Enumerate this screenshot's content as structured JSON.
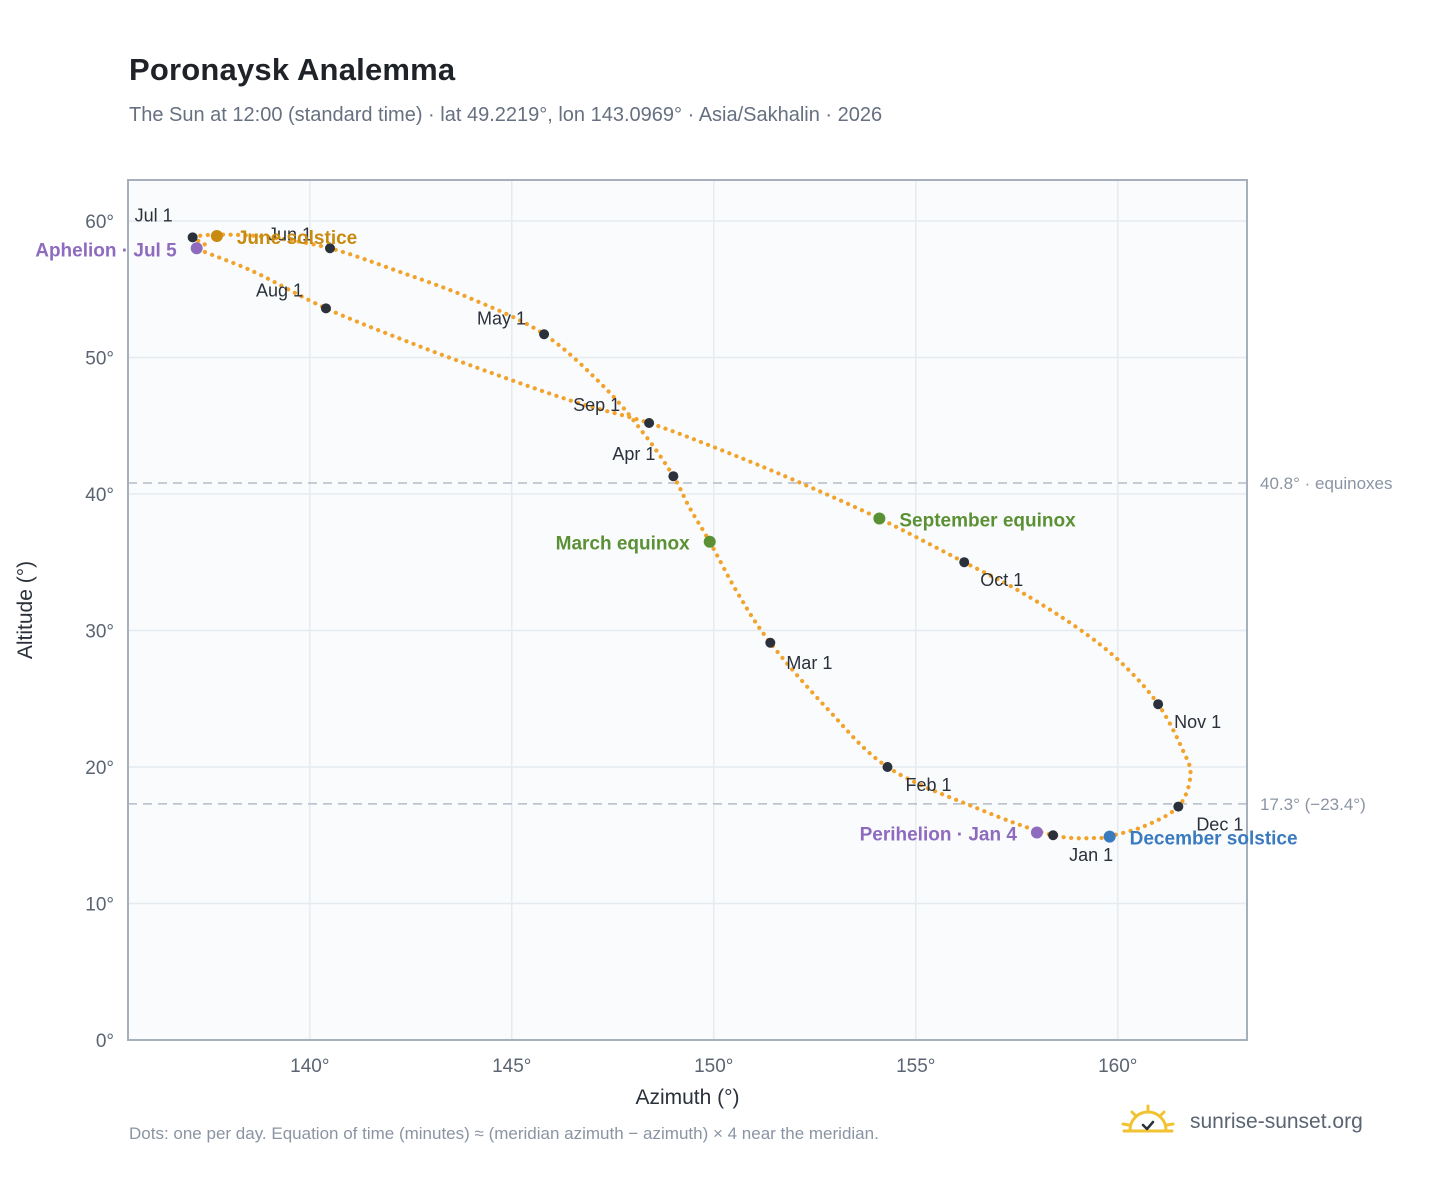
{
  "title": "Poronaysk Analemma",
  "subtitle": "The Sun at 12:00 (standard time) · lat 49.2219°, lon 143.0969° · Asia/Sakhalin · 2026",
  "footnote": "Dots: one per day. Equation of time (minutes) ≈ (meridian azimuth − azimuth) × 4 near the meridian.",
  "brand": {
    "name": "sunrise-sunset.org",
    "icon": "sun-logo-icon"
  },
  "colors": {
    "curve": "#f2a32b",
    "month_marker": "#2b313a",
    "equinox": "#5b9134",
    "june_solstice": "#c98a10",
    "december_solstice": "#3a7abf",
    "apsis": "#8e6bbf",
    "grid": "#e6ebf0",
    "plot_bg": "#f9fbfd",
    "axis": "#a6b0bd",
    "reference_line": "#b5bdc8"
  },
  "chart_data": {
    "type": "scatter",
    "xlabel": "Azimuth (°)",
    "ylabel": "Altitude (°)",
    "xlim": [
      135.5,
      163.2
    ],
    "ylim": [
      0,
      63
    ],
    "xticks": [
      140,
      145,
      150,
      155,
      160
    ],
    "xtick_labels": [
      "140°",
      "145°",
      "150°",
      "155°",
      "160°"
    ],
    "yticks": [
      0,
      10,
      20,
      30,
      40,
      50,
      60
    ],
    "ytick_labels": [
      "0°",
      "10°",
      "20°",
      "30°",
      "40°",
      "50°",
      "60°"
    ],
    "grid": true,
    "series": [
      {
        "type": "line",
        "marker": "daily dots",
        "points": [
          [
            159.6,
            14.8
          ],
          [
            158.4,
            15.0
          ],
          [
            156.5,
            17.0
          ],
          [
            154.3,
            20.0
          ],
          [
            152.8,
            24.3
          ],
          [
            151.4,
            29.1
          ],
          [
            150.6,
            32.7
          ],
          [
            149.9,
            36.5
          ],
          [
            149.4,
            39.0
          ],
          [
            149.0,
            41.3
          ],
          [
            148.3,
            44.3
          ],
          [
            147.3,
            47.8
          ],
          [
            145.8,
            51.7
          ],
          [
            144.0,
            54.3
          ],
          [
            142.2,
            56.3
          ],
          [
            140.5,
            58.0
          ],
          [
            139.0,
            58.8
          ],
          [
            137.8,
            59.0
          ],
          [
            137.1,
            58.8
          ],
          [
            137.4,
            58.3
          ],
          [
            137.2,
            58.0
          ],
          [
            138.6,
            56.3
          ],
          [
            140.4,
            53.6
          ],
          [
            142.3,
            51.3
          ],
          [
            144.0,
            49.4
          ],
          [
            146.5,
            46.8
          ],
          [
            148.4,
            45.2
          ],
          [
            150.2,
            43.2
          ],
          [
            152.0,
            41.0
          ],
          [
            154.1,
            38.2
          ],
          [
            156.2,
            35.0
          ],
          [
            157.5,
            33.0
          ],
          [
            159.0,
            30.2
          ],
          [
            160.1,
            27.6
          ],
          [
            161.0,
            24.6
          ],
          [
            161.6,
            21.3
          ],
          [
            161.8,
            19.4
          ],
          [
            161.5,
            17.1
          ],
          [
            160.6,
            15.6
          ],
          [
            159.6,
            14.8
          ]
        ]
      }
    ],
    "month_markers": [
      {
        "label": "Jan 1",
        "az": 158.4,
        "alt": 15.0
      },
      {
        "label": "Feb 1",
        "az": 154.3,
        "alt": 20.0
      },
      {
        "label": "Mar 1",
        "az": 151.4,
        "alt": 29.1
      },
      {
        "label": "Apr 1",
        "az": 149.0,
        "alt": 41.3
      },
      {
        "label": "May 1",
        "az": 145.8,
        "alt": 51.7
      },
      {
        "label": "Jun 1",
        "az": 140.5,
        "alt": 58.0
      },
      {
        "label": "Jul 1",
        "az": 137.1,
        "alt": 58.8
      },
      {
        "label": "Aug 1",
        "az": 140.4,
        "alt": 53.6
      },
      {
        "label": "Sep 1",
        "az": 148.4,
        "alt": 45.2
      },
      {
        "label": "Oct 1",
        "az": 156.2,
        "alt": 35.0
      },
      {
        "label": "Nov 1",
        "az": 161.0,
        "alt": 24.6
      },
      {
        "label": "Dec 1",
        "az": 161.5,
        "alt": 17.1
      }
    ],
    "events": [
      {
        "label": "June solstice",
        "az": 137.7,
        "alt": 58.9,
        "color_key": "june_solstice"
      },
      {
        "label": "Aphelion · Jul 5",
        "az": 137.2,
        "alt": 58.0,
        "color_key": "apsis"
      },
      {
        "label": "March equinox",
        "az": 149.9,
        "alt": 36.5,
        "color_key": "equinox"
      },
      {
        "label": "September equinox",
        "az": 154.1,
        "alt": 38.2,
        "color_key": "equinox"
      },
      {
        "label": "Perihelion · Jan 4",
        "az": 158.0,
        "alt": 15.2,
        "color_key": "apsis"
      },
      {
        "label": "December solstice",
        "az": 159.8,
        "alt": 14.9,
        "color_key": "december_solstice"
      }
    ],
    "reference_lines": [
      {
        "alt": 40.8,
        "label": "40.8° · equinoxes"
      },
      {
        "alt": 17.3,
        "label": "17.3° (−23.4°)"
      }
    ]
  }
}
